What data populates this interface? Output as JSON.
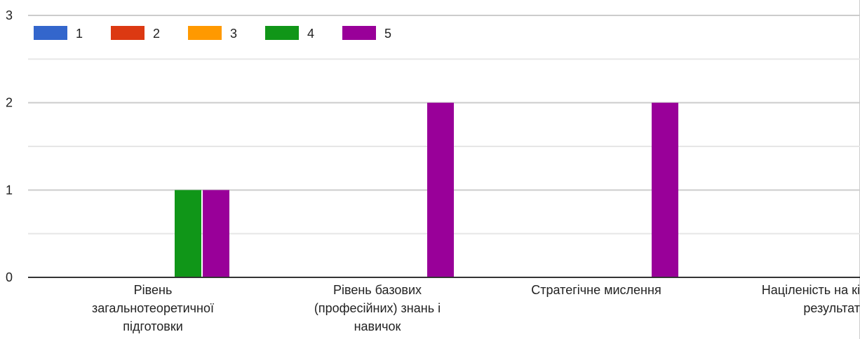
{
  "chart_data": {
    "type": "bar",
    "categories": [
      [
        "Рівень",
        "загальнотеоретичної",
        "підготовки"
      ],
      [
        "Рівень базових",
        "(професійних) знань і",
        "навичок"
      ],
      [
        "Стратегічне мислення"
      ],
      [
        "Націленість на кі",
        "результат"
      ]
    ],
    "series": [
      {
        "name": "1",
        "color": "#3366cc",
        "values": [
          0,
          0,
          0,
          0
        ]
      },
      {
        "name": "2",
        "color": "#dc3912",
        "values": [
          0,
          0,
          0,
          0
        ]
      },
      {
        "name": "3",
        "color": "#ff9900",
        "values": [
          0,
          0,
          0,
          0
        ]
      },
      {
        "name": "4",
        "color": "#109618",
        "values": [
          1,
          0,
          0,
          0
        ]
      },
      {
        "name": "5",
        "color": "#990099",
        "values": [
          1,
          2,
          2,
          0
        ]
      }
    ],
    "ylim": [
      0,
      3
    ],
    "yticks": [
      "0",
      "1",
      "2",
      "3"
    ],
    "grid": true,
    "legend_position": "top-left"
  }
}
